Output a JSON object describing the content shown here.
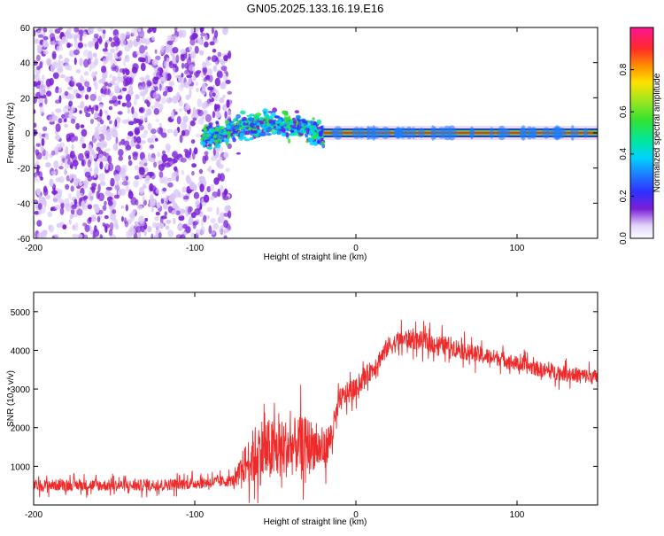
{
  "page": {
    "title": "GN05.2025.133.16.19.E16"
  },
  "chart_data": [
    {
      "type": "heatmap",
      "title": "GN05.2025.133.16.19.E16",
      "xlabel": "Height of straight line (km)",
      "ylabel": "Frequency (Hz)",
      "xlim": [
        -200,
        150
      ],
      "ylim": [
        -60,
        60
      ],
      "x_ticks": [
        -200,
        -100,
        0,
        100
      ],
      "y_ticks": [
        -60,
        -40,
        -20,
        0,
        20,
        40,
        60
      ],
      "colorbar": {
        "label": "Normalized spectral amplitude",
        "range": [
          0.0,
          1.0
        ],
        "ticks": [
          0.0,
          0.2,
          0.4,
          0.6,
          0.8
        ]
      },
      "regions": [
        {
          "name_hint": "noise",
          "x_from": -200,
          "x_to": -78,
          "freq_from": -60,
          "freq_to": 60,
          "amplitude": 0.05
        },
        {
          "name_hint": "onset",
          "x_from": -95,
          "x_to": -20,
          "freq_center_range": [
            -4,
            5
          ],
          "amplitude": 0.45
        },
        {
          "name_hint": "carrier",
          "x_from": -20,
          "x_to": 150,
          "freq_center": 0,
          "amplitude": 0.95
        }
      ],
      "grid": false,
      "colormap": "rainbow"
    },
    {
      "type": "line",
      "xlabel": "Height of straight line (km)",
      "ylabel": "SNR (10 * v/v)",
      "xlim": [
        -200,
        150
      ],
      "ylim": [
        0,
        5500
      ],
      "x_ticks": [
        -200,
        -100,
        0,
        100
      ],
      "y_ticks": [
        1000,
        2000,
        3000,
        4000,
        5000
      ],
      "series": [
        {
          "color": "#ee2a2a",
          "x": [
            -200,
            -180,
            -160,
            -140,
            -120,
            -100,
            -80,
            -75,
            -70,
            -60,
            -50,
            -40,
            -30,
            -20,
            -15,
            -10,
            -5,
            0,
            5,
            10,
            15,
            20,
            25,
            30,
            40,
            50,
            60,
            70,
            80,
            90,
            100,
            110,
            120,
            130,
            140,
            150
          ],
          "mean": [
            500,
            520,
            510,
            500,
            520,
            560,
            620,
            650,
            1000,
            1400,
            1400,
            1500,
            1600,
            1400,
            1800,
            2700,
            2900,
            3000,
            3300,
            3500,
            3800,
            4100,
            4200,
            4300,
            4250,
            4150,
            4100,
            3950,
            3850,
            3800,
            3650,
            3550,
            3450,
            3400,
            3350,
            3300
          ],
          "spread": [
            300,
            300,
            300,
            300,
            300,
            300,
            300,
            300,
            900,
            1800,
            1600,
            1500,
            1400,
            1000,
            900,
            600,
            600,
            500,
            500,
            500,
            500,
            500,
            500,
            500,
            500,
            500,
            500,
            450,
            450,
            400,
            400,
            400,
            400,
            400,
            400,
            400
          ]
        }
      ],
      "grid": false,
      "legend": "none"
    }
  ],
  "colors": {
    "line": "#ee2a2a",
    "noise_dark": "#7a1fd6",
    "noise_light": "#d9c7f7"
  }
}
